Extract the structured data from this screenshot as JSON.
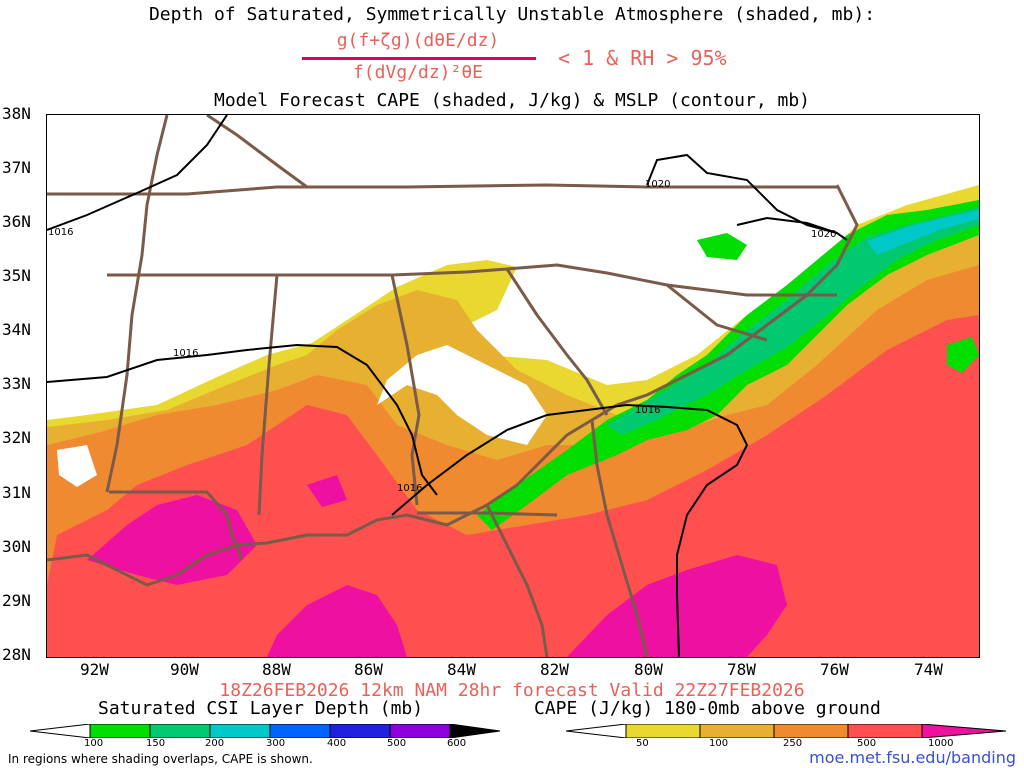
{
  "header": {
    "title_line1": "Depth of Saturated, Symmetrically Unstable Atmosphere (shaded, mb):",
    "fraction_numerator": "g(f+ζg)(dθE/dz)",
    "fraction_denominator": "f(dVg/dz)²θE",
    "condition": "< 1 & RH > 95%",
    "title_line3": "Model Forecast CAPE (shaded, J/kg) & MSLP (contour, mb)"
  },
  "axes": {
    "lat_labels": [
      "38N",
      "37N",
      "36N",
      "35N",
      "34N",
      "33N",
      "32N",
      "31N",
      "30N",
      "29N",
      "28N"
    ],
    "lon_labels": [
      "92W",
      "90W",
      "88W",
      "86W",
      "84W",
      "82W",
      "80W",
      "78W",
      "76W",
      "74W"
    ]
  },
  "isobars": [
    "1020",
    "1020",
    "1016",
    "1016",
    "1016",
    "1016"
  ],
  "footer": {
    "valid_line": "18Z26FEB2026 12km NAM 28hr forecast Valid 22Z27FEB2026",
    "csi_title": "Saturated CSI Layer Depth (mb)",
    "cape_title": "CAPE (J/kg) 180-0mb above ground",
    "csi_ticks": [
      "100",
      "150",
      "200",
      "300",
      "400",
      "500",
      "600"
    ],
    "cape_ticks": [
      "50",
      "100",
      "250",
      "500",
      "1000"
    ],
    "csi_colors": [
      "#ffffff",
      "#00dd00",
      "#00c86e",
      "#00c8c8",
      "#0064ff",
      "#2020e0",
      "#8c00dc",
      "#000000"
    ],
    "cape_colors": [
      "#ffffff",
      "#e8d830",
      "#e8b030",
      "#f08a30",
      "#ff5050",
      "#ff2060",
      "#ee10a0"
    ],
    "note": "In regions where shading overlaps, CAPE is shown.",
    "url": "moe.met.fsu.edu/banding"
  }
}
